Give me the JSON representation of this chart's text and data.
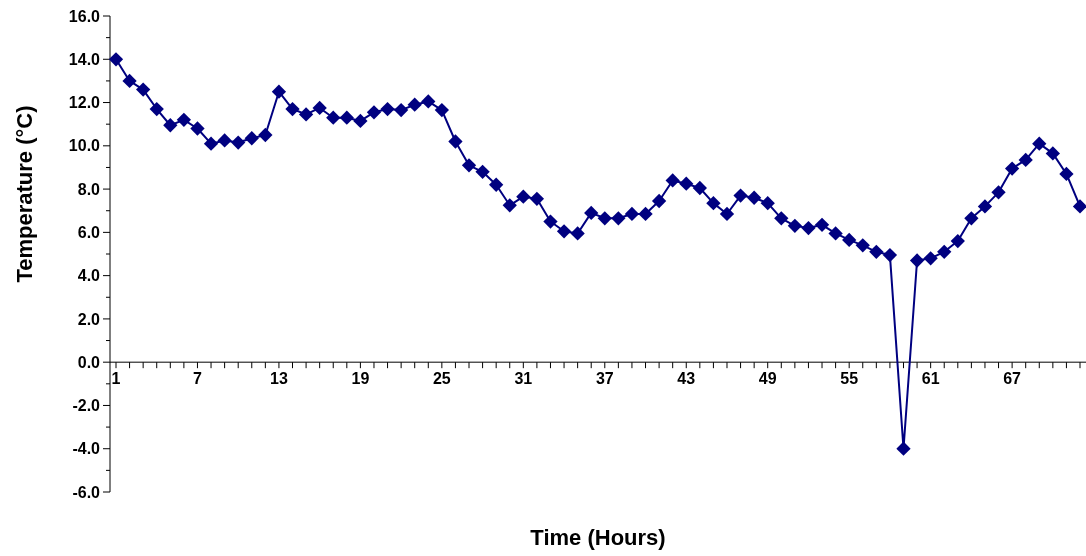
{
  "chart_data": {
    "type": "line",
    "xlabel": "Time (Hours)",
    "ylabel": "Temperature (°C)",
    "categories": [
      "1",
      null,
      null,
      null,
      null,
      null,
      "7",
      null,
      null,
      null,
      null,
      null,
      "13",
      null,
      null,
      null,
      null,
      null,
      "19",
      null,
      null,
      null,
      null,
      null,
      "25",
      null,
      null,
      null,
      null,
      null,
      "31",
      null,
      null,
      null,
      null,
      null,
      "37",
      null,
      null,
      null,
      null,
      null,
      "43",
      null,
      null,
      null,
      null,
      null,
      "49",
      null,
      null,
      null,
      null,
      null,
      "55",
      null,
      null,
      null,
      null,
      null,
      "61",
      null,
      null,
      null,
      null,
      null,
      "67",
      null,
      null,
      null,
      null,
      null
    ],
    "series": [
      {
        "color": "#000080",
        "values": [
          14.0,
          13.0,
          12.6,
          11.7,
          10.95,
          11.2,
          10.8,
          10.1,
          10.25,
          10.15,
          10.35,
          10.5,
          12.5,
          11.7,
          11.45,
          11.75,
          11.3,
          11.3,
          11.15,
          11.55,
          11.7,
          11.65,
          11.9,
          12.05,
          11.65,
          10.2,
          9.1,
          8.8,
          8.2,
          7.25,
          7.65,
          7.55,
          6.5,
          6.05,
          5.95,
          6.9,
          6.65,
          6.65,
          6.85,
          6.85,
          7.45,
          8.4,
          8.25,
          8.05,
          7.35,
          6.85,
          7.7,
          7.6,
          7.35,
          6.65,
          6.3,
          6.2,
          6.35,
          5.95,
          5.65,
          5.4,
          5.1,
          4.95,
          -4.0,
          4.7,
          4.8,
          5.1,
          5.6,
          6.65,
          7.2,
          7.85,
          8.95,
          9.35,
          10.1,
          9.65,
          8.7,
          7.2
        ]
      }
    ],
    "ylim": [
      -6,
      16
    ],
    "yticks": [
      {
        "value": -6,
        "label": "-6.0"
      },
      {
        "value": -5,
        "label": null
      },
      {
        "value": -4,
        "label": "-4.0"
      },
      {
        "value": -3,
        "label": null
      },
      {
        "value": -2,
        "label": "-2.0"
      },
      {
        "value": -1,
        "label": null
      },
      {
        "value": 0,
        "label": "0.0"
      },
      {
        "value": 1,
        "label": null
      },
      {
        "value": 2,
        "label": "2.0"
      },
      {
        "value": 3,
        "label": null
      },
      {
        "value": 4,
        "label": "4.0"
      },
      {
        "value": 5,
        "label": null
      },
      {
        "value": 6,
        "label": "6.0"
      },
      {
        "value": 7,
        "label": null
      },
      {
        "value": 8,
        "label": "8.0"
      },
      {
        "value": 9,
        "label": null
      },
      {
        "value": 10,
        "label": "10.0"
      },
      {
        "value": 11,
        "label": null
      },
      {
        "value": 12,
        "label": "12.0"
      },
      {
        "value": 13,
        "label": null
      },
      {
        "value": 14,
        "label": "14.0"
      },
      {
        "value": 15,
        "label": null
      },
      {
        "value": 16,
        "label": "16.0"
      }
    ],
    "marker": "diamond",
    "line_style": "solid",
    "grid": false
  }
}
